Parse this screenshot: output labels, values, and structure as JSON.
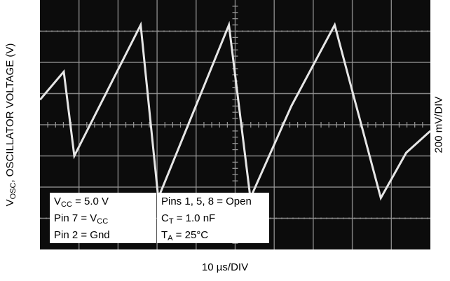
{
  "chart_data": {
    "type": "line",
    "title": "",
    "ylabel": {
      "main": "V",
      "sub": "OSC",
      "rest": ", OSCILLATOR VOLTAGE (V)"
    },
    "xlabel": "10 µs/DIV",
    "y_scale_label": "200 mV/DIV",
    "grid": true,
    "x_divisions": 10,
    "y_divisions": 8,
    "xlim": [
      0,
      10
    ],
    "ylim": [
      0,
      8
    ],
    "series": [
      {
        "x": [
          0,
          0.61,
          0.88,
          2.58,
          3.03,
          4.84,
          5.39,
          6.44,
          7.55,
          8.73,
          9.38,
          10
        ],
        "values": [
          4.8,
          5.7,
          3.0,
          7.2,
          1.65,
          7.2,
          1.65,
          4.6,
          7.2,
          1.65,
          3.1,
          3.8
        ]
      }
    ],
    "annotations": [
      {
        "lines": [
          {
            "main": "V",
            "sub": "CC",
            "rest": " = 5.0 V"
          },
          {
            "main": "Pin 7 = V",
            "sub": "CC",
            "rest": ""
          },
          {
            "main": "Pin 2 = Gnd",
            "sub": "",
            "rest": ""
          }
        ]
      },
      {
        "lines": [
          {
            "main": "Pins 1, 5, 8 = Open",
            "sub": "",
            "rest": ""
          },
          {
            "main": "C",
            "sub": "T",
            "rest": " = 1.0 nF"
          },
          {
            "main": "T",
            "sub": "A",
            "rest": " = 25°C"
          }
        ]
      }
    ]
  },
  "colors": {
    "screen": "#0c0c0c",
    "grid": "#9a9a9a",
    "trace": "#e6e6e6"
  }
}
